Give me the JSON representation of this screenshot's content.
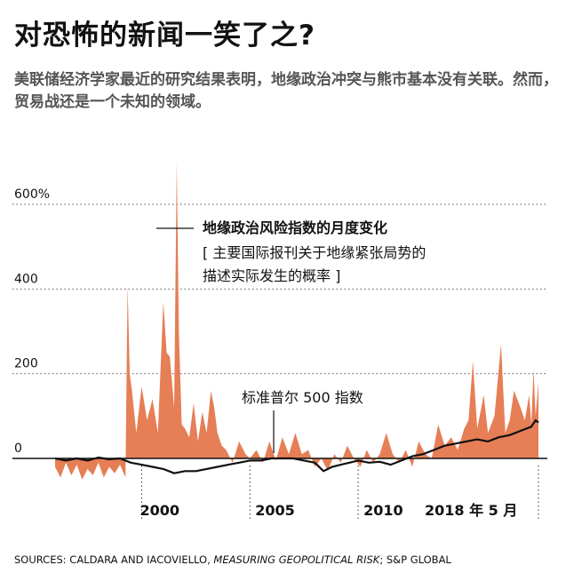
{
  "header": {
    "title": "对恐怖的新闻一笑了之?",
    "subtitle": "美联储经济学家最近的研究结果表明，地缘政治冲突与熊市基本没有关联。然而，贸易战还是一个未知的领域。"
  },
  "source": {
    "prefix": "SOURCES: CALDARA AND IACOVIELLO, ",
    "italic": "MEASURING GEOPOLITICAL RISK",
    "suffix": "; S&P GLOBAL"
  },
  "chart_data": {
    "type": "area",
    "ylim": [
      -50,
      700
    ],
    "yticks": [
      0,
      200,
      400,
      600
    ],
    "ytick_labels": [
      "0",
      "200",
      "400",
      "600%"
    ],
    "x_ticks": [
      2000,
      2005,
      2010,
      2018.33
    ],
    "x_tick_labels": [
      "2000",
      "2005",
      "2010",
      "2018 年 5 月"
    ],
    "grid": "dotted horizontal",
    "colors": {
      "area": "#e67e56",
      "line": "#111111",
      "grid": "#555555"
    },
    "series": [
      {
        "name": "地缘政治风险指数的月度变化",
        "note": "[ 主要国际报刊关于地缘紧张局势的描述实际发生的概率 ]",
        "kind": "area",
        "points": [
          [
            1996.0,
            -20
          ],
          [
            1996.25,
            -45
          ],
          [
            1996.5,
            -10
          ],
          [
            1996.75,
            -40
          ],
          [
            1997.0,
            -15
          ],
          [
            1997.25,
            -50
          ],
          [
            1997.5,
            -25
          ],
          [
            1997.75,
            -40
          ],
          [
            1998.0,
            -10
          ],
          [
            1998.25,
            -45
          ],
          [
            1998.5,
            -20
          ],
          [
            1998.75,
            -35
          ],
          [
            1999.0,
            -15
          ],
          [
            1999.25,
            -45
          ],
          [
            1999.35,
            410
          ],
          [
            1999.45,
            200
          ],
          [
            1999.55,
            160
          ],
          [
            1999.75,
            60
          ],
          [
            2000.0,
            170
          ],
          [
            2000.25,
            90
          ],
          [
            2000.5,
            140
          ],
          [
            2000.75,
            60
          ],
          [
            2001.0,
            370
          ],
          [
            2001.15,
            250
          ],
          [
            2001.3,
            240
          ],
          [
            2001.5,
            120
          ],
          [
            2001.62,
            700
          ],
          [
            2001.72,
            300
          ],
          [
            2001.85,
            80
          ],
          [
            2002.0,
            70
          ],
          [
            2002.2,
            50
          ],
          [
            2002.4,
            130
          ],
          [
            2002.6,
            40
          ],
          [
            2002.8,
            110
          ],
          [
            2003.0,
            60
          ],
          [
            2003.2,
            160
          ],
          [
            2003.35,
            120
          ],
          [
            2003.5,
            60
          ],
          [
            2003.7,
            30
          ],
          [
            2003.9,
            20
          ],
          [
            2004.2,
            -10
          ],
          [
            2004.5,
            40
          ],
          [
            2004.8,
            10
          ],
          [
            2005.0,
            0
          ],
          [
            2005.3,
            20
          ],
          [
            2005.6,
            -10
          ],
          [
            2005.9,
            40
          ],
          [
            2006.2,
            -5
          ],
          [
            2006.5,
            50
          ],
          [
            2006.8,
            10
          ],
          [
            2007.1,
            60
          ],
          [
            2007.4,
            10
          ],
          [
            2007.7,
            20
          ],
          [
            2008.0,
            -20
          ],
          [
            2008.3,
            0
          ],
          [
            2008.6,
            -30
          ],
          [
            2008.9,
            10
          ],
          [
            2009.2,
            -10
          ],
          [
            2009.5,
            30
          ],
          [
            2009.8,
            0
          ],
          [
            2010.1,
            -20
          ],
          [
            2010.4,
            20
          ],
          [
            2010.7,
            -10
          ],
          [
            2011.0,
            10
          ],
          [
            2011.3,
            60
          ],
          [
            2011.6,
            10
          ],
          [
            2011.9,
            -10
          ],
          [
            2012.2,
            20
          ],
          [
            2012.5,
            -20
          ],
          [
            2012.8,
            40
          ],
          [
            2013.1,
            10
          ],
          [
            2013.4,
            0
          ],
          [
            2013.7,
            80
          ],
          [
            2014.0,
            30
          ],
          [
            2014.3,
            50
          ],
          [
            2014.6,
            20
          ],
          [
            2014.9,
            70
          ],
          [
            2015.1,
            90
          ],
          [
            2015.3,
            230
          ],
          [
            2015.5,
            70
          ],
          [
            2015.8,
            150
          ],
          [
            2016.0,
            60
          ],
          [
            2016.3,
            100
          ],
          [
            2016.6,
            270
          ],
          [
            2016.8,
            60
          ],
          [
            2017.0,
            90
          ],
          [
            2017.2,
            160
          ],
          [
            2017.5,
            120
          ],
          [
            2017.7,
            90
          ],
          [
            2017.9,
            150
          ],
          [
            2018.0,
            80
          ],
          [
            2018.1,
            210
          ],
          [
            2018.2,
            100
          ],
          [
            2018.33,
            180
          ]
        ]
      },
      {
        "name": "标准普尔 500 指数",
        "kind": "line",
        "points": [
          [
            1996.0,
            0
          ],
          [
            1996.5,
            -5
          ],
          [
            1997.0,
            0
          ],
          [
            1997.5,
            -5
          ],
          [
            1998.0,
            2
          ],
          [
            1998.5,
            -2
          ],
          [
            1999.0,
            0
          ],
          [
            1999.5,
            -10
          ],
          [
            2000.0,
            -15
          ],
          [
            2000.5,
            -20
          ],
          [
            2001.0,
            -25
          ],
          [
            2001.5,
            -35
          ],
          [
            2002.0,
            -30
          ],
          [
            2002.5,
            -30
          ],
          [
            2003.0,
            -25
          ],
          [
            2003.5,
            -20
          ],
          [
            2004.0,
            -15
          ],
          [
            2004.5,
            -10
          ],
          [
            2005.0,
            -5
          ],
          [
            2005.5,
            -5
          ],
          [
            2006.0,
            0
          ],
          [
            2006.5,
            0
          ],
          [
            2007.0,
            0
          ],
          [
            2007.5,
            -5
          ],
          [
            2008.0,
            -10
          ],
          [
            2008.4,
            -30
          ],
          [
            2008.8,
            -20
          ],
          [
            2009.2,
            -15
          ],
          [
            2009.6,
            -10
          ],
          [
            2010.0,
            -5
          ],
          [
            2010.5,
            -10
          ],
          [
            2011.0,
            -8
          ],
          [
            2011.5,
            -15
          ],
          [
            2012.0,
            -5
          ],
          [
            2012.5,
            5
          ],
          [
            2013.0,
            10
          ],
          [
            2013.5,
            20
          ],
          [
            2014.0,
            30
          ],
          [
            2014.5,
            35
          ],
          [
            2015.0,
            40
          ],
          [
            2015.5,
            45
          ],
          [
            2016.0,
            40
          ],
          [
            2016.5,
            50
          ],
          [
            2017.0,
            55
          ],
          [
            2017.5,
            65
          ],
          [
            2018.0,
            75
          ],
          [
            2018.2,
            90
          ],
          [
            2018.33,
            85
          ]
        ]
      }
    ]
  }
}
